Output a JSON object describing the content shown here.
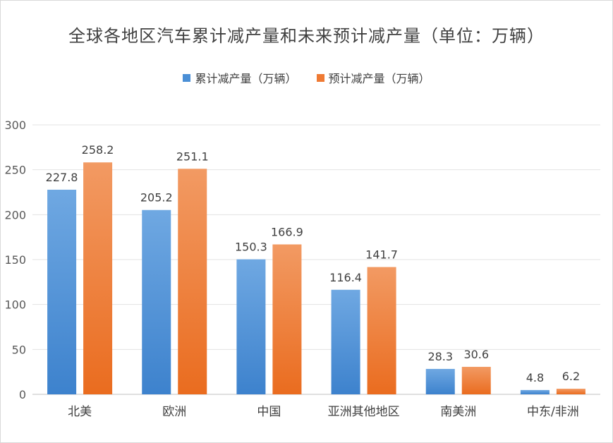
{
  "chart_data": {
    "type": "bar",
    "title": "全球各地区汽车累计减产量和未来预计减产量（单位：万辆）",
    "categories": [
      "北美",
      "欧洲",
      "中国",
      "亚洲其他地区",
      "南美洲",
      "中东/非洲"
    ],
    "series": [
      {
        "name": "累计减产量（万辆）",
        "values": [
          227.8,
          205.2,
          150.3,
          116.4,
          28.3,
          4.8
        ],
        "color": "#4a8fd6"
      },
      {
        "name": "预计减产量（万辆）",
        "values": [
          258.2,
          251.1,
          166.9,
          141.7,
          30.6,
          6.2
        ],
        "color": "#ef7a33"
      }
    ],
    "ylim": [
      0,
      300
    ],
    "yticks": [
      0,
      50,
      100,
      150,
      200,
      250,
      300
    ],
    "grid": true,
    "legend_position": "top-center",
    "xlabel": "",
    "ylabel": ""
  }
}
